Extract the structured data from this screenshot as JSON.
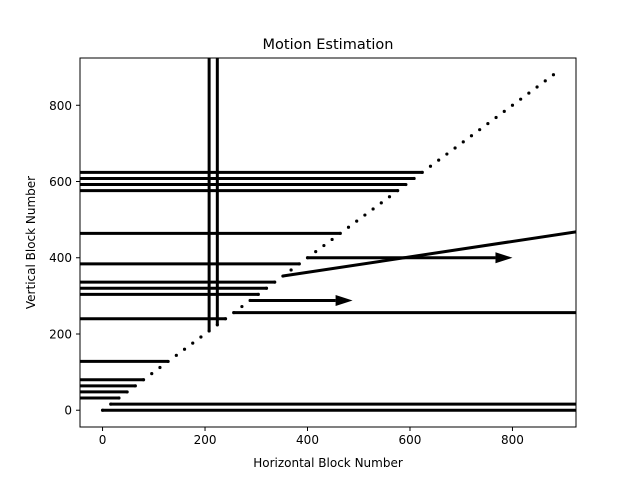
{
  "chart_data": {
    "type": "line",
    "title": "Motion Estimation",
    "xlabel": "Horizontal Block Number",
    "ylabel": "Vertical Block Number",
    "xlim": [
      -44,
      924
    ],
    "ylim": [
      -44,
      924
    ],
    "x_ticks": [
      0,
      200,
      400,
      600,
      800
    ],
    "y_ticks": [
      0,
      200,
      400,
      600,
      800
    ],
    "x_tick_labels": [
      "0",
      "200",
      "400",
      "600",
      "800"
    ],
    "y_tick_labels": [
      "0",
      "200",
      "400",
      "600",
      "800"
    ],
    "grid": false,
    "legend": "none",
    "colors": {
      "vector": "#000000",
      "background": "#ffffff"
    },
    "diagonal_points": {
      "x_start": 0,
      "x_end": 880,
      "step": 16,
      "note_values": "points lie on y = x"
    },
    "vectors": [
      {
        "x": 0,
        "y": 0,
        "dx": 924,
        "dy": 0
      },
      {
        "x": 16,
        "y": 16,
        "dx": 908,
        "dy": 0
      },
      {
        "x": 32,
        "y": 32,
        "dx": -76,
        "dy": 0
      },
      {
        "x": 48,
        "y": 48,
        "dx": -92,
        "dy": 0
      },
      {
        "x": 64,
        "y": 64,
        "dx": -108,
        "dy": 0
      },
      {
        "x": 80,
        "y": 80,
        "dx": -124,
        "dy": 0
      },
      {
        "x": 128,
        "y": 128,
        "dx": -172,
        "dy": 0
      },
      {
        "x": 240,
        "y": 240,
        "dx": -284,
        "dy": 0
      },
      {
        "x": 256,
        "y": 256,
        "dx": 668,
        "dy": 0
      },
      {
        "x": 288,
        "y": 288,
        "dx": 200,
        "dy": 0,
        "arrow": true
      },
      {
        "x": 304,
        "y": 304,
        "dx": -348,
        "dy": 0
      },
      {
        "x": 320,
        "y": 320,
        "dx": -364,
        "dy": 0
      },
      {
        "x": 336,
        "y": 336,
        "dx": -380,
        "dy": 0
      },
      {
        "x": 352,
        "y": 352,
        "dx": 572,
        "dy": 116
      },
      {
        "x": 384,
        "y": 384,
        "dx": -428,
        "dy": 0
      },
      {
        "x": 400,
        "y": 400,
        "dx": 400,
        "dy": 0,
        "arrow": true
      },
      {
        "x": 464,
        "y": 464,
        "dx": -508,
        "dy": 0
      },
      {
        "x": 576,
        "y": 576,
        "dx": -620,
        "dy": 0
      },
      {
        "x": 592,
        "y": 592,
        "dx": -636,
        "dy": 0
      },
      {
        "x": 608,
        "y": 608,
        "dx": -652,
        "dy": 0
      },
      {
        "x": 624,
        "y": 624,
        "dx": -668,
        "dy": 0
      },
      {
        "x": 208,
        "y": 208,
        "dx": 0,
        "dy": 716
      },
      {
        "x": 224,
        "y": 224,
        "dx": 0,
        "dy": 700
      }
    ]
  }
}
